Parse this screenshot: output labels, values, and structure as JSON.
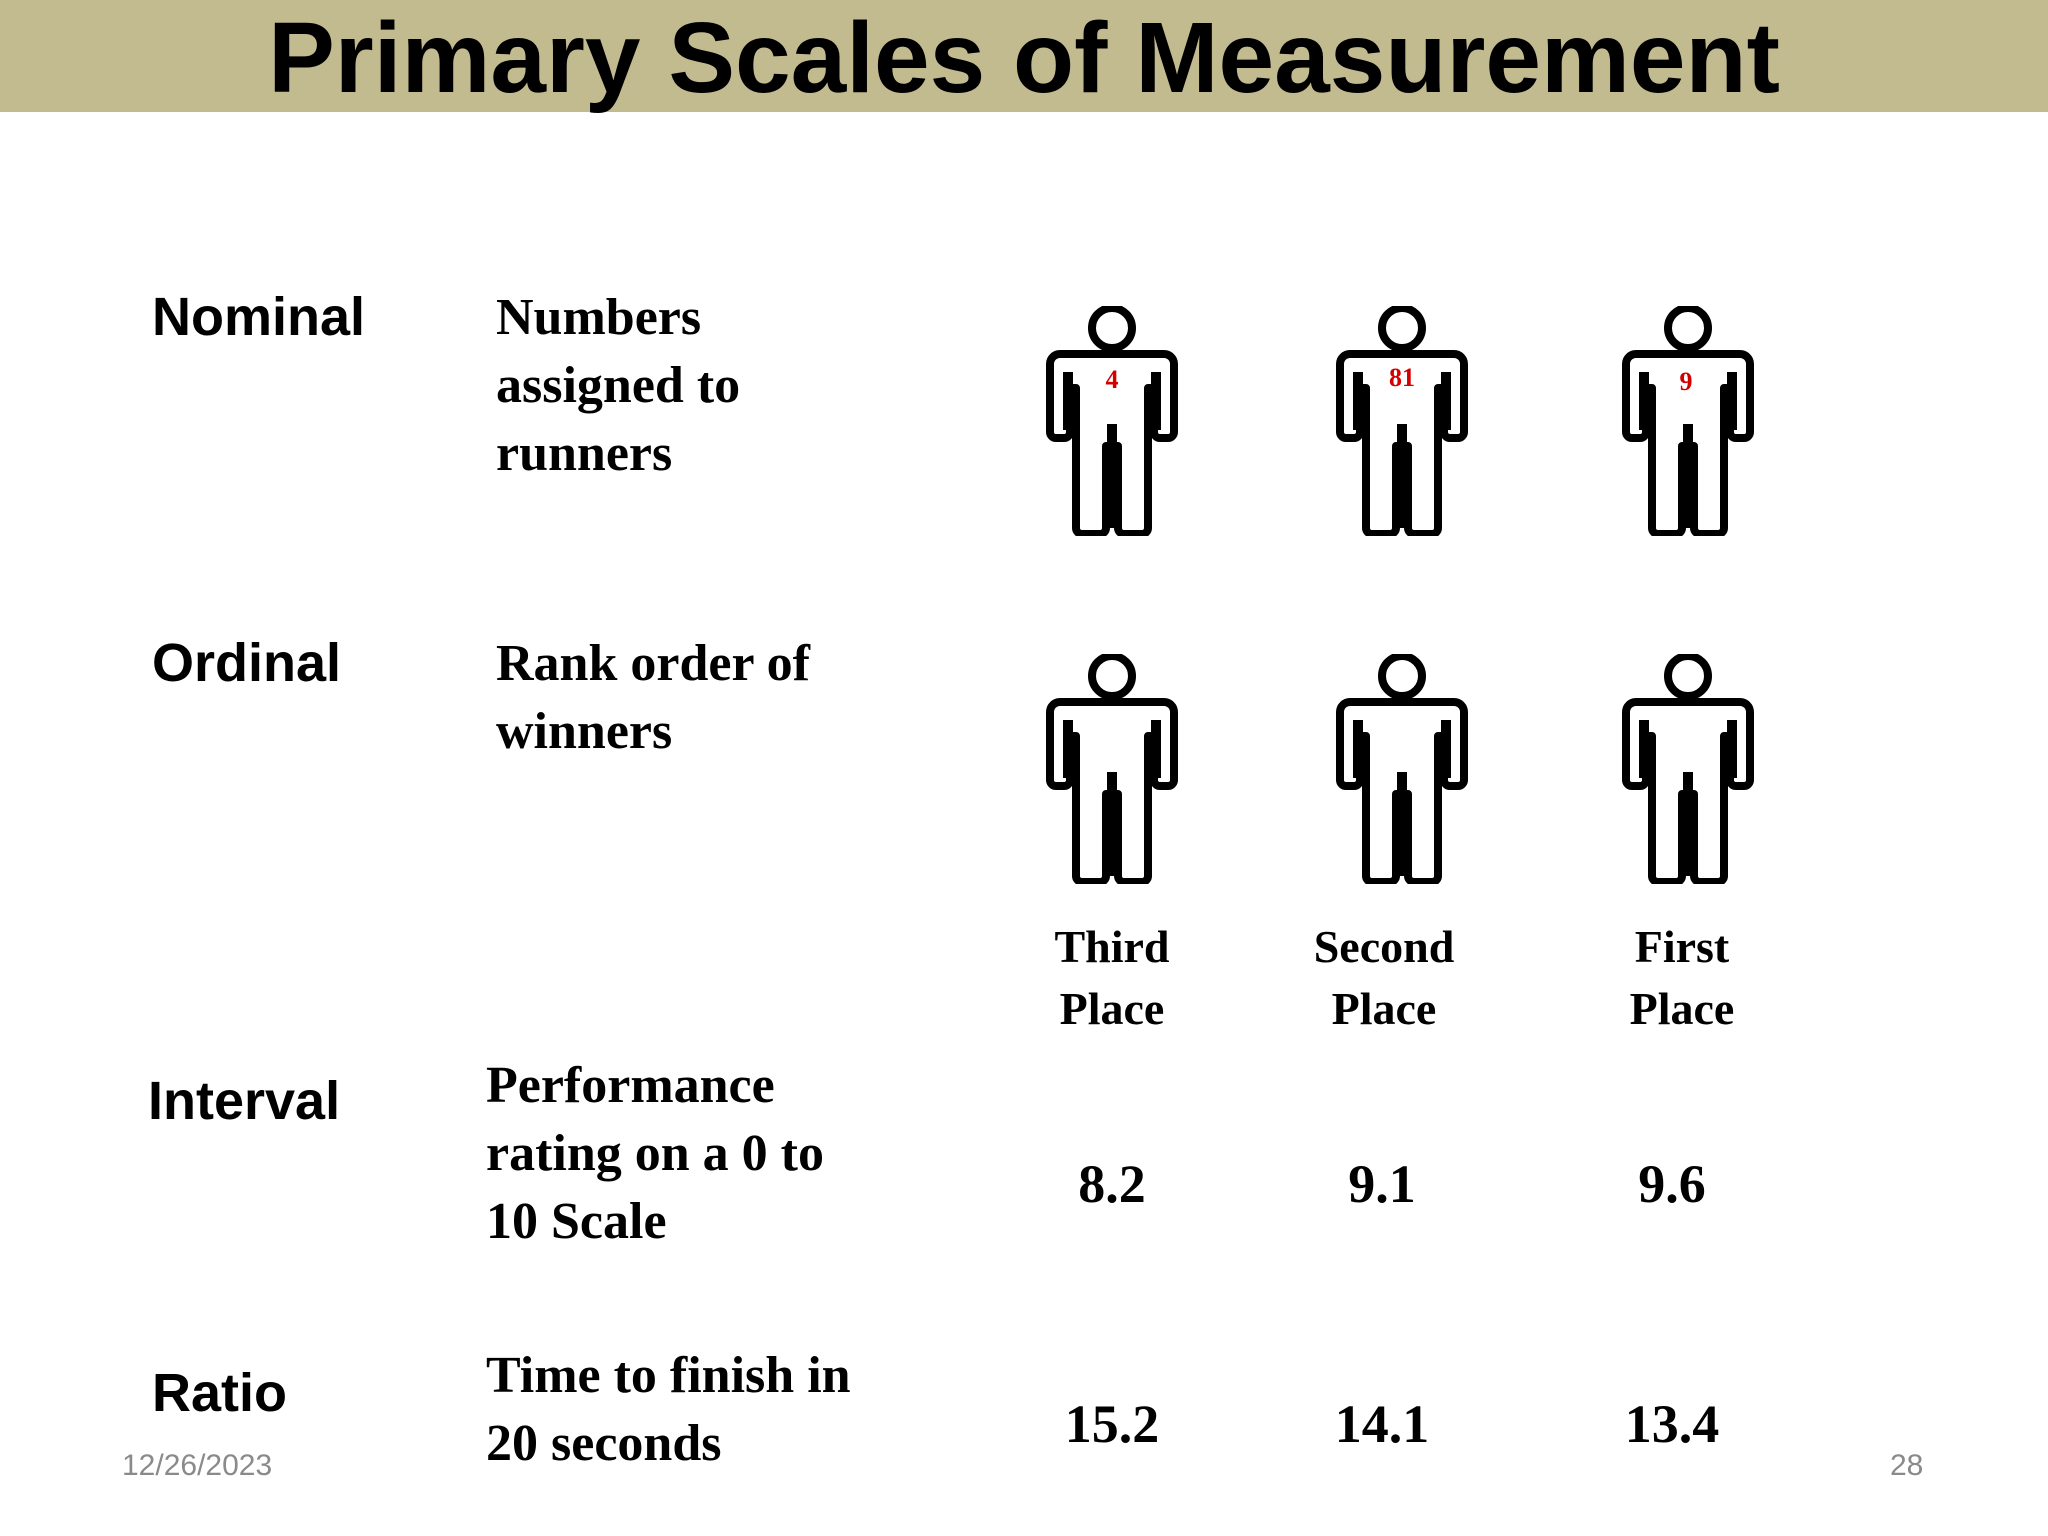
{
  "slide": {
    "title": "Primary Scales of Measurement",
    "footer_date": "12/26/2023",
    "page_number": "28"
  },
  "scales": {
    "nominal": {
      "name": "Nominal",
      "description": "Numbers\nassigned to\nrunners",
      "bibs": [
        "4",
        "81",
        "9"
      ]
    },
    "ordinal": {
      "name": "Ordinal",
      "description": "Rank order of\nwinners",
      "places": [
        "Third\nPlace",
        "Second\nPlace",
        "First\nPlace"
      ]
    },
    "interval": {
      "name": "Interval",
      "description": "Performance\nrating on a 0 to\n10 Scale",
      "values": [
        "8.2",
        "9.1",
        "9.6"
      ]
    },
    "ratio": {
      "name": "Ratio",
      "description": "Time to finish in\n20 seconds",
      "values": [
        "15.2",
        "14.1",
        "13.4"
      ]
    }
  },
  "colors": {
    "title_bar": "#c3bb90",
    "bib_number": "#d40000"
  },
  "icons": {
    "runner": "person-icon"
  }
}
